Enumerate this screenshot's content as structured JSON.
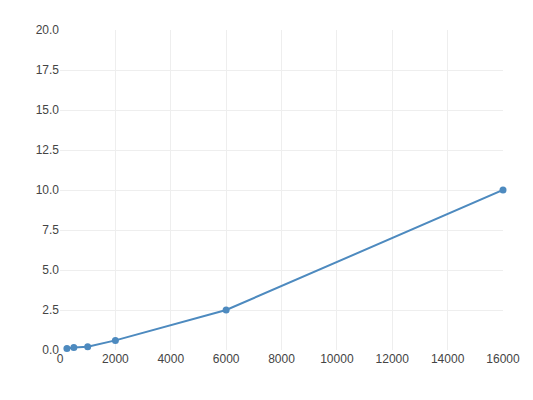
{
  "chart_data": {
    "type": "line",
    "x": [
      250,
      500,
      1000,
      2000,
      6000,
      16000
    ],
    "values": [
      0.1,
      0.15,
      0.2,
      0.6,
      2.5,
      10.0
    ],
    "color": "#4d8abf",
    "marker": "circle",
    "xlim": [
      0,
      16000
    ],
    "ylim": [
      0.0,
      20.0
    ],
    "xticks": [
      0,
      2000,
      4000,
      6000,
      8000,
      10000,
      12000,
      14000,
      16000
    ],
    "yticks": [
      {
        "value": 0,
        "label": "0.0"
      },
      2.5,
      {
        "value": 5,
        "label": "5.0"
      },
      7.5,
      {
        "value": 10,
        "label": "10.0"
      },
      12.5,
      {
        "value": 15,
        "label": "15.0"
      },
      17.5,
      {
        "value": 20,
        "label": "20.0"
      }
    ],
    "grid": true
  }
}
